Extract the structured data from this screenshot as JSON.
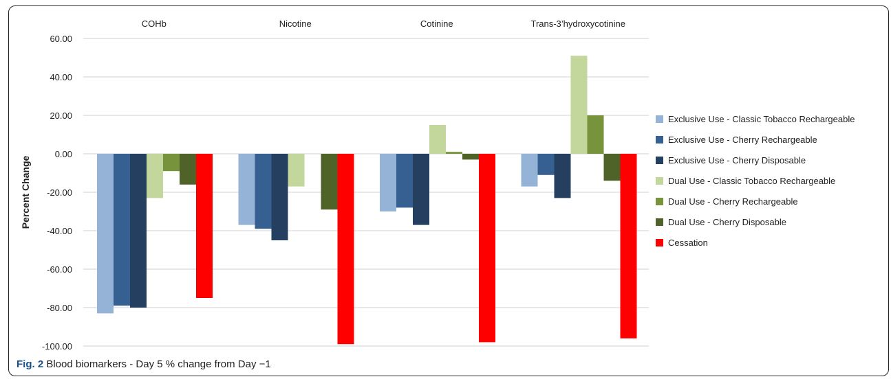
{
  "figure": {
    "caption_label": "Fig. 2",
    "caption_text": " Blood biomarkers - Day 5 % change from Day −1"
  },
  "chart_data": {
    "type": "bar",
    "title": "",
    "xlabel": "",
    "ylabel": "Percent Change",
    "ylim": [
      -100,
      60
    ],
    "yticks": [
      "60.00",
      "40.00",
      "20.00",
      "0.00",
      "-20.00",
      "-40.00",
      "-60.00",
      "-80.00",
      "-100.00"
    ],
    "ytick_values": [
      60,
      40,
      20,
      0,
      -20,
      -40,
      -60,
      -80,
      -100
    ],
    "grid": true,
    "legend_position": "right",
    "categories": [
      "COHb",
      "Nicotine",
      "Cotinine",
      "Trans-3’hydroxycotinine"
    ],
    "series": [
      {
        "name": "Exclusive Use - Classic Tobacco Rechargeable",
        "color": "#95b3d7",
        "values": [
          -83,
          -37,
          -30,
          -17
        ]
      },
      {
        "name": "Exclusive Use - Cherry Rechargeable",
        "color": "#376092",
        "values": [
          -79,
          -39,
          -28,
          -11
        ]
      },
      {
        "name": "Exclusive Use - Cherry Disposable",
        "color": "#243f60",
        "values": [
          -80,
          -45,
          -37,
          -23
        ]
      },
      {
        "name": "Dual Use - Classic Tobacco Rechargeable",
        "color": "#c3d69b",
        "values": [
          -23,
          -17,
          15,
          51
        ]
      },
      {
        "name": "Dual Use - Cherry Rechargeable",
        "color": "#77933c",
        "values": [
          -9,
          null,
          1,
          20
        ]
      },
      {
        "name": "Dual Use - Cherry Disposable",
        "color": "#4f6228",
        "values": [
          -16,
          -29,
          -3,
          -14
        ]
      },
      {
        "name": "Cessation",
        "color": "#ff0000",
        "values": [
          -75,
          -99,
          -98,
          -96
        ]
      }
    ]
  }
}
